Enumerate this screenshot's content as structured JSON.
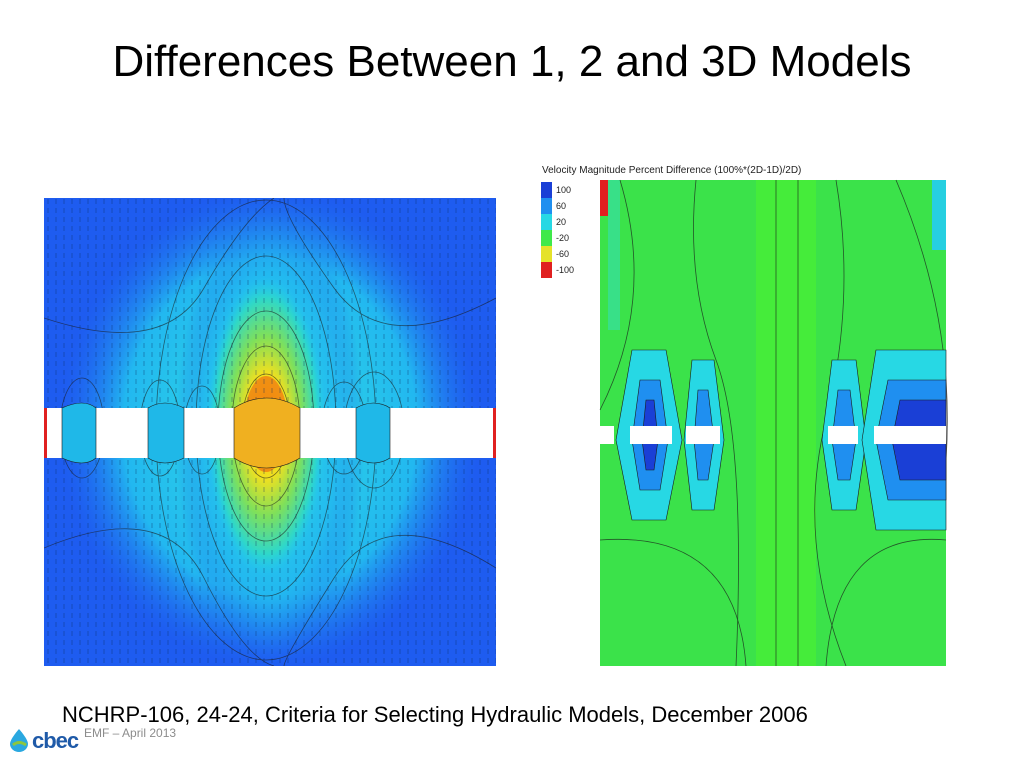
{
  "slide": {
    "title": "Differences Between 1, 2 and 3D Models",
    "caption": "NCHRP-106, 24-24, Criteria for Selecting Hydraulic Models, December 2006",
    "footer": "EMF – April 2013",
    "logo_text": "cbec"
  },
  "right_figure": {
    "legend_title": "Velocity Magnitude Percent Difference (100%*(2D-1D)/2D)",
    "legend": [
      {
        "label": "100",
        "color": "#1a3fd6"
      },
      {
        "label": "60",
        "color": "#1f8ff0"
      },
      {
        "label": "20",
        "color": "#27d8e4"
      },
      {
        "label": "-20",
        "color": "#3fe94a"
      },
      {
        "label": "-60",
        "color": "#e5e22a"
      },
      {
        "label": "-100",
        "color": "#e02020"
      }
    ]
  },
  "colors": {
    "model_blue": "#1f5ff0",
    "model_cyan": "#22c8f0",
    "model_green": "#3be24a",
    "model_yellow": "#f0e020",
    "model_red": "#e05010"
  }
}
